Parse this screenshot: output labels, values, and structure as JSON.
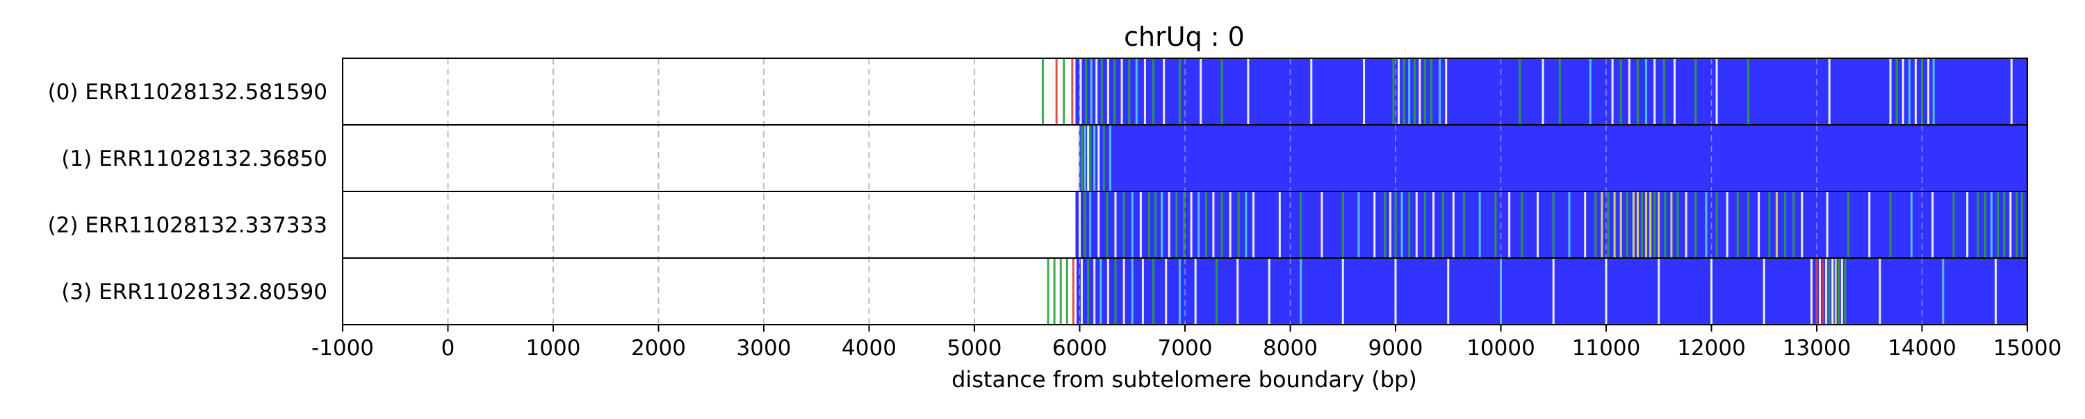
{
  "chart_data": {
    "type": "heatmap",
    "title": "chrUq : 0",
    "xlabel": "distance from subtelomere boundary (bp)",
    "ylabel": "",
    "xlim": [
      -1000,
      15000
    ],
    "xticks": [
      -1000,
      0,
      1000,
      2000,
      3000,
      4000,
      5000,
      6000,
      7000,
      8000,
      9000,
      10000,
      11000,
      12000,
      13000,
      14000,
      15000
    ],
    "xtick_labels": [
      "-1000",
      "0",
      "1000",
      "2000",
      "3000",
      "4000",
      "5000",
      "6000",
      "7000",
      "8000",
      "9000",
      "10000",
      "11000",
      "12000",
      "13000",
      "14000",
      "15000"
    ],
    "grid": "vertical dashed at each x tick",
    "legend": "none",
    "colors": {
      "background_fill": "#3333ff",
      "white": "#ffffff",
      "green": "#2e9e3a",
      "light_blue": "#55ccee",
      "yellow": "#e6e64d",
      "red": "#e03a3a",
      "grid": "#bbbbbb"
    },
    "rows": [
      {
        "label": "(0) ERR11028132.581590",
        "fill_start": 5960,
        "fill_end": 15000,
        "marks": [
          {
            "x": 5650,
            "color": "green"
          },
          {
            "x": 5780,
            "color": "red"
          },
          {
            "x": 5850,
            "color": "green"
          },
          {
            "x": 5930,
            "color": "red"
          },
          {
            "x": 6010,
            "color": "white"
          },
          {
            "x": 6060,
            "color": "green"
          },
          {
            "x": 6110,
            "color": "light_blue"
          },
          {
            "x": 6160,
            "color": "white"
          },
          {
            "x": 6210,
            "color": "green"
          },
          {
            "x": 6270,
            "color": "white"
          },
          {
            "x": 6330,
            "color": "green"
          },
          {
            "x": 6400,
            "color": "white"
          },
          {
            "x": 6470,
            "color": "green"
          },
          {
            "x": 6540,
            "color": "light_blue"
          },
          {
            "x": 6620,
            "color": "white"
          },
          {
            "x": 6700,
            "color": "green"
          },
          {
            "x": 6800,
            "color": "white"
          },
          {
            "x": 6950,
            "color": "green"
          },
          {
            "x": 7150,
            "color": "white"
          },
          {
            "x": 7350,
            "color": "green"
          },
          {
            "x": 7600,
            "color": "white"
          },
          {
            "x": 8200,
            "color": "white"
          },
          {
            "x": 8700,
            "color": "white"
          },
          {
            "x": 8980,
            "color": "green"
          },
          {
            "x": 9030,
            "color": "white"
          },
          {
            "x": 9080,
            "color": "green"
          },
          {
            "x": 9130,
            "color": "light_blue"
          },
          {
            "x": 9180,
            "color": "green"
          },
          {
            "x": 9230,
            "color": "white"
          },
          {
            "x": 9280,
            "color": "green"
          },
          {
            "x": 9340,
            "color": "green"
          },
          {
            "x": 9420,
            "color": "light_blue"
          },
          {
            "x": 9480,
            "color": "white"
          },
          {
            "x": 10180,
            "color": "green"
          },
          {
            "x": 10400,
            "color": "white"
          },
          {
            "x": 10560,
            "color": "green"
          },
          {
            "x": 10850,
            "color": "light_blue"
          },
          {
            "x": 11060,
            "color": "white"
          },
          {
            "x": 11140,
            "color": "green"
          },
          {
            "x": 11220,
            "color": "white"
          },
          {
            "x": 11300,
            "color": "green"
          },
          {
            "x": 11380,
            "color": "light_blue"
          },
          {
            "x": 11460,
            "color": "white"
          },
          {
            "x": 11550,
            "color": "green"
          },
          {
            "x": 11650,
            "color": "white"
          },
          {
            "x": 11850,
            "color": "green"
          },
          {
            "x": 12050,
            "color": "white"
          },
          {
            "x": 12350,
            "color": "green"
          },
          {
            "x": 13120,
            "color": "white"
          },
          {
            "x": 13700,
            "color": "white"
          },
          {
            "x": 13760,
            "color": "green"
          },
          {
            "x": 13820,
            "color": "white"
          },
          {
            "x": 13880,
            "color": "light_blue"
          },
          {
            "x": 13940,
            "color": "white"
          },
          {
            "x": 14000,
            "color": "green"
          },
          {
            "x": 14060,
            "color": "white"
          },
          {
            "x": 14110,
            "color": "light_blue"
          },
          {
            "x": 14850,
            "color": "white"
          }
        ]
      },
      {
        "label": "(1) ERR11028132.36850",
        "fill_start": 5980,
        "fill_end": 15000,
        "marks": [
          {
            "x": 5985,
            "color": "white"
          },
          {
            "x": 6020,
            "color": "green"
          },
          {
            "x": 6050,
            "color": "light_blue"
          },
          {
            "x": 6080,
            "color": "white"
          },
          {
            "x": 6100,
            "color": "green"
          },
          {
            "x": 6140,
            "color": "light_blue"
          },
          {
            "x": 6180,
            "color": "white"
          },
          {
            "x": 6230,
            "color": "green"
          },
          {
            "x": 6290,
            "color": "light_blue"
          }
        ]
      },
      {
        "label": "(2) ERR11028132.337333",
        "fill_start": 5960,
        "fill_end": 15000,
        "marks": [
          {
            "x": 6000,
            "color": "white"
          },
          {
            "x": 6050,
            "color": "green"
          },
          {
            "x": 6100,
            "color": "light_blue"
          },
          {
            "x": 6180,
            "color": "white"
          },
          {
            "x": 6260,
            "color": "green"
          },
          {
            "x": 6340,
            "color": "white"
          },
          {
            "x": 6420,
            "color": "green"
          },
          {
            "x": 6500,
            "color": "light_blue"
          },
          {
            "x": 6580,
            "color": "white"
          },
          {
            "x": 6660,
            "color": "green"
          },
          {
            "x": 6720,
            "color": "green"
          },
          {
            "x": 6780,
            "color": "light_blue"
          },
          {
            "x": 6850,
            "color": "white"
          },
          {
            "x": 6920,
            "color": "green"
          },
          {
            "x": 6990,
            "color": "green"
          },
          {
            "x": 7060,
            "color": "white"
          },
          {
            "x": 7130,
            "color": "light_blue"
          },
          {
            "x": 7200,
            "color": "green"
          },
          {
            "x": 7270,
            "color": "white"
          },
          {
            "x": 7350,
            "color": "green"
          },
          {
            "x": 7430,
            "color": "white"
          },
          {
            "x": 7510,
            "color": "green"
          },
          {
            "x": 7580,
            "color": "light_blue"
          },
          {
            "x": 7650,
            "color": "white"
          },
          {
            "x": 7900,
            "color": "white"
          },
          {
            "x": 8100,
            "color": "green"
          },
          {
            "x": 8300,
            "color": "white"
          },
          {
            "x": 8500,
            "color": "green"
          },
          {
            "x": 8650,
            "color": "light_blue"
          },
          {
            "x": 8800,
            "color": "white"
          },
          {
            "x": 8900,
            "color": "green"
          },
          {
            "x": 8950,
            "color": "white"
          },
          {
            "x": 9000,
            "color": "green"
          },
          {
            "x": 9060,
            "color": "light_blue"
          },
          {
            "x": 9130,
            "color": "green"
          },
          {
            "x": 9200,
            "color": "white"
          },
          {
            "x": 9280,
            "color": "green"
          },
          {
            "x": 9360,
            "color": "white"
          },
          {
            "x": 9450,
            "color": "green"
          },
          {
            "x": 9550,
            "color": "white"
          },
          {
            "x": 9650,
            "color": "green"
          },
          {
            "x": 9800,
            "color": "light_blue"
          },
          {
            "x": 9950,
            "color": "green"
          },
          {
            "x": 10080,
            "color": "white"
          },
          {
            "x": 10200,
            "color": "green"
          },
          {
            "x": 10350,
            "color": "white"
          },
          {
            "x": 10500,
            "color": "green"
          },
          {
            "x": 10650,
            "color": "light_blue"
          },
          {
            "x": 10800,
            "color": "white"
          },
          {
            "x": 10900,
            "color": "green"
          },
          {
            "x": 10960,
            "color": "yellow"
          },
          {
            "x": 11020,
            "color": "green"
          },
          {
            "x": 11080,
            "color": "yellow"
          },
          {
            "x": 11140,
            "color": "yellow"
          },
          {
            "x": 11200,
            "color": "green"
          },
          {
            "x": 11260,
            "color": "yellow"
          },
          {
            "x": 11300,
            "color": "yellow"
          },
          {
            "x": 11340,
            "color": "green"
          },
          {
            "x": 11380,
            "color": "yellow"
          },
          {
            "x": 11420,
            "color": "yellow"
          },
          {
            "x": 11460,
            "color": "green"
          },
          {
            "x": 11500,
            "color": "yellow"
          },
          {
            "x": 11560,
            "color": "green"
          },
          {
            "x": 11620,
            "color": "yellow"
          },
          {
            "x": 11680,
            "color": "green"
          },
          {
            "x": 11760,
            "color": "white"
          },
          {
            "x": 11850,
            "color": "green"
          },
          {
            "x": 11950,
            "color": "light_blue"
          },
          {
            "x": 12050,
            "color": "green"
          },
          {
            "x": 12150,
            "color": "white"
          },
          {
            "x": 12250,
            "color": "green"
          },
          {
            "x": 12350,
            "color": "green"
          },
          {
            "x": 12450,
            "color": "white"
          },
          {
            "x": 12550,
            "color": "green"
          },
          {
            "x": 12620,
            "color": "yellow"
          },
          {
            "x": 12700,
            "color": "green"
          },
          {
            "x": 12780,
            "color": "green"
          },
          {
            "x": 12860,
            "color": "white"
          },
          {
            "x": 13100,
            "color": "white"
          },
          {
            "x": 13300,
            "color": "green"
          },
          {
            "x": 13500,
            "color": "white"
          },
          {
            "x": 13700,
            "color": "green"
          },
          {
            "x": 13900,
            "color": "light_blue"
          },
          {
            "x": 14100,
            "color": "white"
          },
          {
            "x": 14300,
            "color": "green"
          },
          {
            "x": 14430,
            "color": "white"
          },
          {
            "x": 14530,
            "color": "green"
          },
          {
            "x": 14600,
            "color": "green"
          },
          {
            "x": 14660,
            "color": "light_blue"
          },
          {
            "x": 14720,
            "color": "green"
          },
          {
            "x": 14780,
            "color": "green"
          },
          {
            "x": 14840,
            "color": "white"
          },
          {
            "x": 14900,
            "color": "green"
          },
          {
            "x": 14950,
            "color": "green"
          }
        ]
      },
      {
        "label": "(3) ERR11028132.80590",
        "fill_start": 5970,
        "fill_end": 15000,
        "marks": [
          {
            "x": 5700,
            "color": "green"
          },
          {
            "x": 5760,
            "color": "green"
          },
          {
            "x": 5820,
            "color": "green"
          },
          {
            "x": 5880,
            "color": "green"
          },
          {
            "x": 5940,
            "color": "red"
          },
          {
            "x": 6020,
            "color": "white"
          },
          {
            "x": 6080,
            "color": "green"
          },
          {
            "x": 6140,
            "color": "white"
          },
          {
            "x": 6200,
            "color": "light_blue"
          },
          {
            "x": 6270,
            "color": "white"
          },
          {
            "x": 6340,
            "color": "green"
          },
          {
            "x": 6420,
            "color": "white"
          },
          {
            "x": 6500,
            "color": "light_blue"
          },
          {
            "x": 6600,
            "color": "white"
          },
          {
            "x": 6700,
            "color": "green"
          },
          {
            "x": 6820,
            "color": "white"
          },
          {
            "x": 6950,
            "color": "light_blue"
          },
          {
            "x": 7100,
            "color": "white"
          },
          {
            "x": 7300,
            "color": "green"
          },
          {
            "x": 7500,
            "color": "white"
          },
          {
            "x": 7800,
            "color": "white"
          },
          {
            "x": 8100,
            "color": "light_blue"
          },
          {
            "x": 8500,
            "color": "white"
          },
          {
            "x": 9000,
            "color": "white"
          },
          {
            "x": 9500,
            "color": "white"
          },
          {
            "x": 10000,
            "color": "light_blue"
          },
          {
            "x": 10500,
            "color": "white"
          },
          {
            "x": 11000,
            "color": "white"
          },
          {
            "x": 11500,
            "color": "white"
          },
          {
            "x": 12000,
            "color": "white"
          },
          {
            "x": 12500,
            "color": "white"
          },
          {
            "x": 12950,
            "color": "white"
          },
          {
            "x": 13000,
            "color": "red"
          },
          {
            "x": 13030,
            "color": "white"
          },
          {
            "x": 13060,
            "color": "red"
          },
          {
            "x": 13090,
            "color": "white"
          },
          {
            "x": 13120,
            "color": "green"
          },
          {
            "x": 13150,
            "color": "white"
          },
          {
            "x": 13180,
            "color": "yellow"
          },
          {
            "x": 13210,
            "color": "green"
          },
          {
            "x": 13240,
            "color": "white"
          },
          {
            "x": 13270,
            "color": "green"
          },
          {
            "x": 13600,
            "color": "white"
          },
          {
            "x": 14200,
            "color": "light_blue"
          },
          {
            "x": 14700,
            "color": "white"
          }
        ]
      }
    ]
  }
}
